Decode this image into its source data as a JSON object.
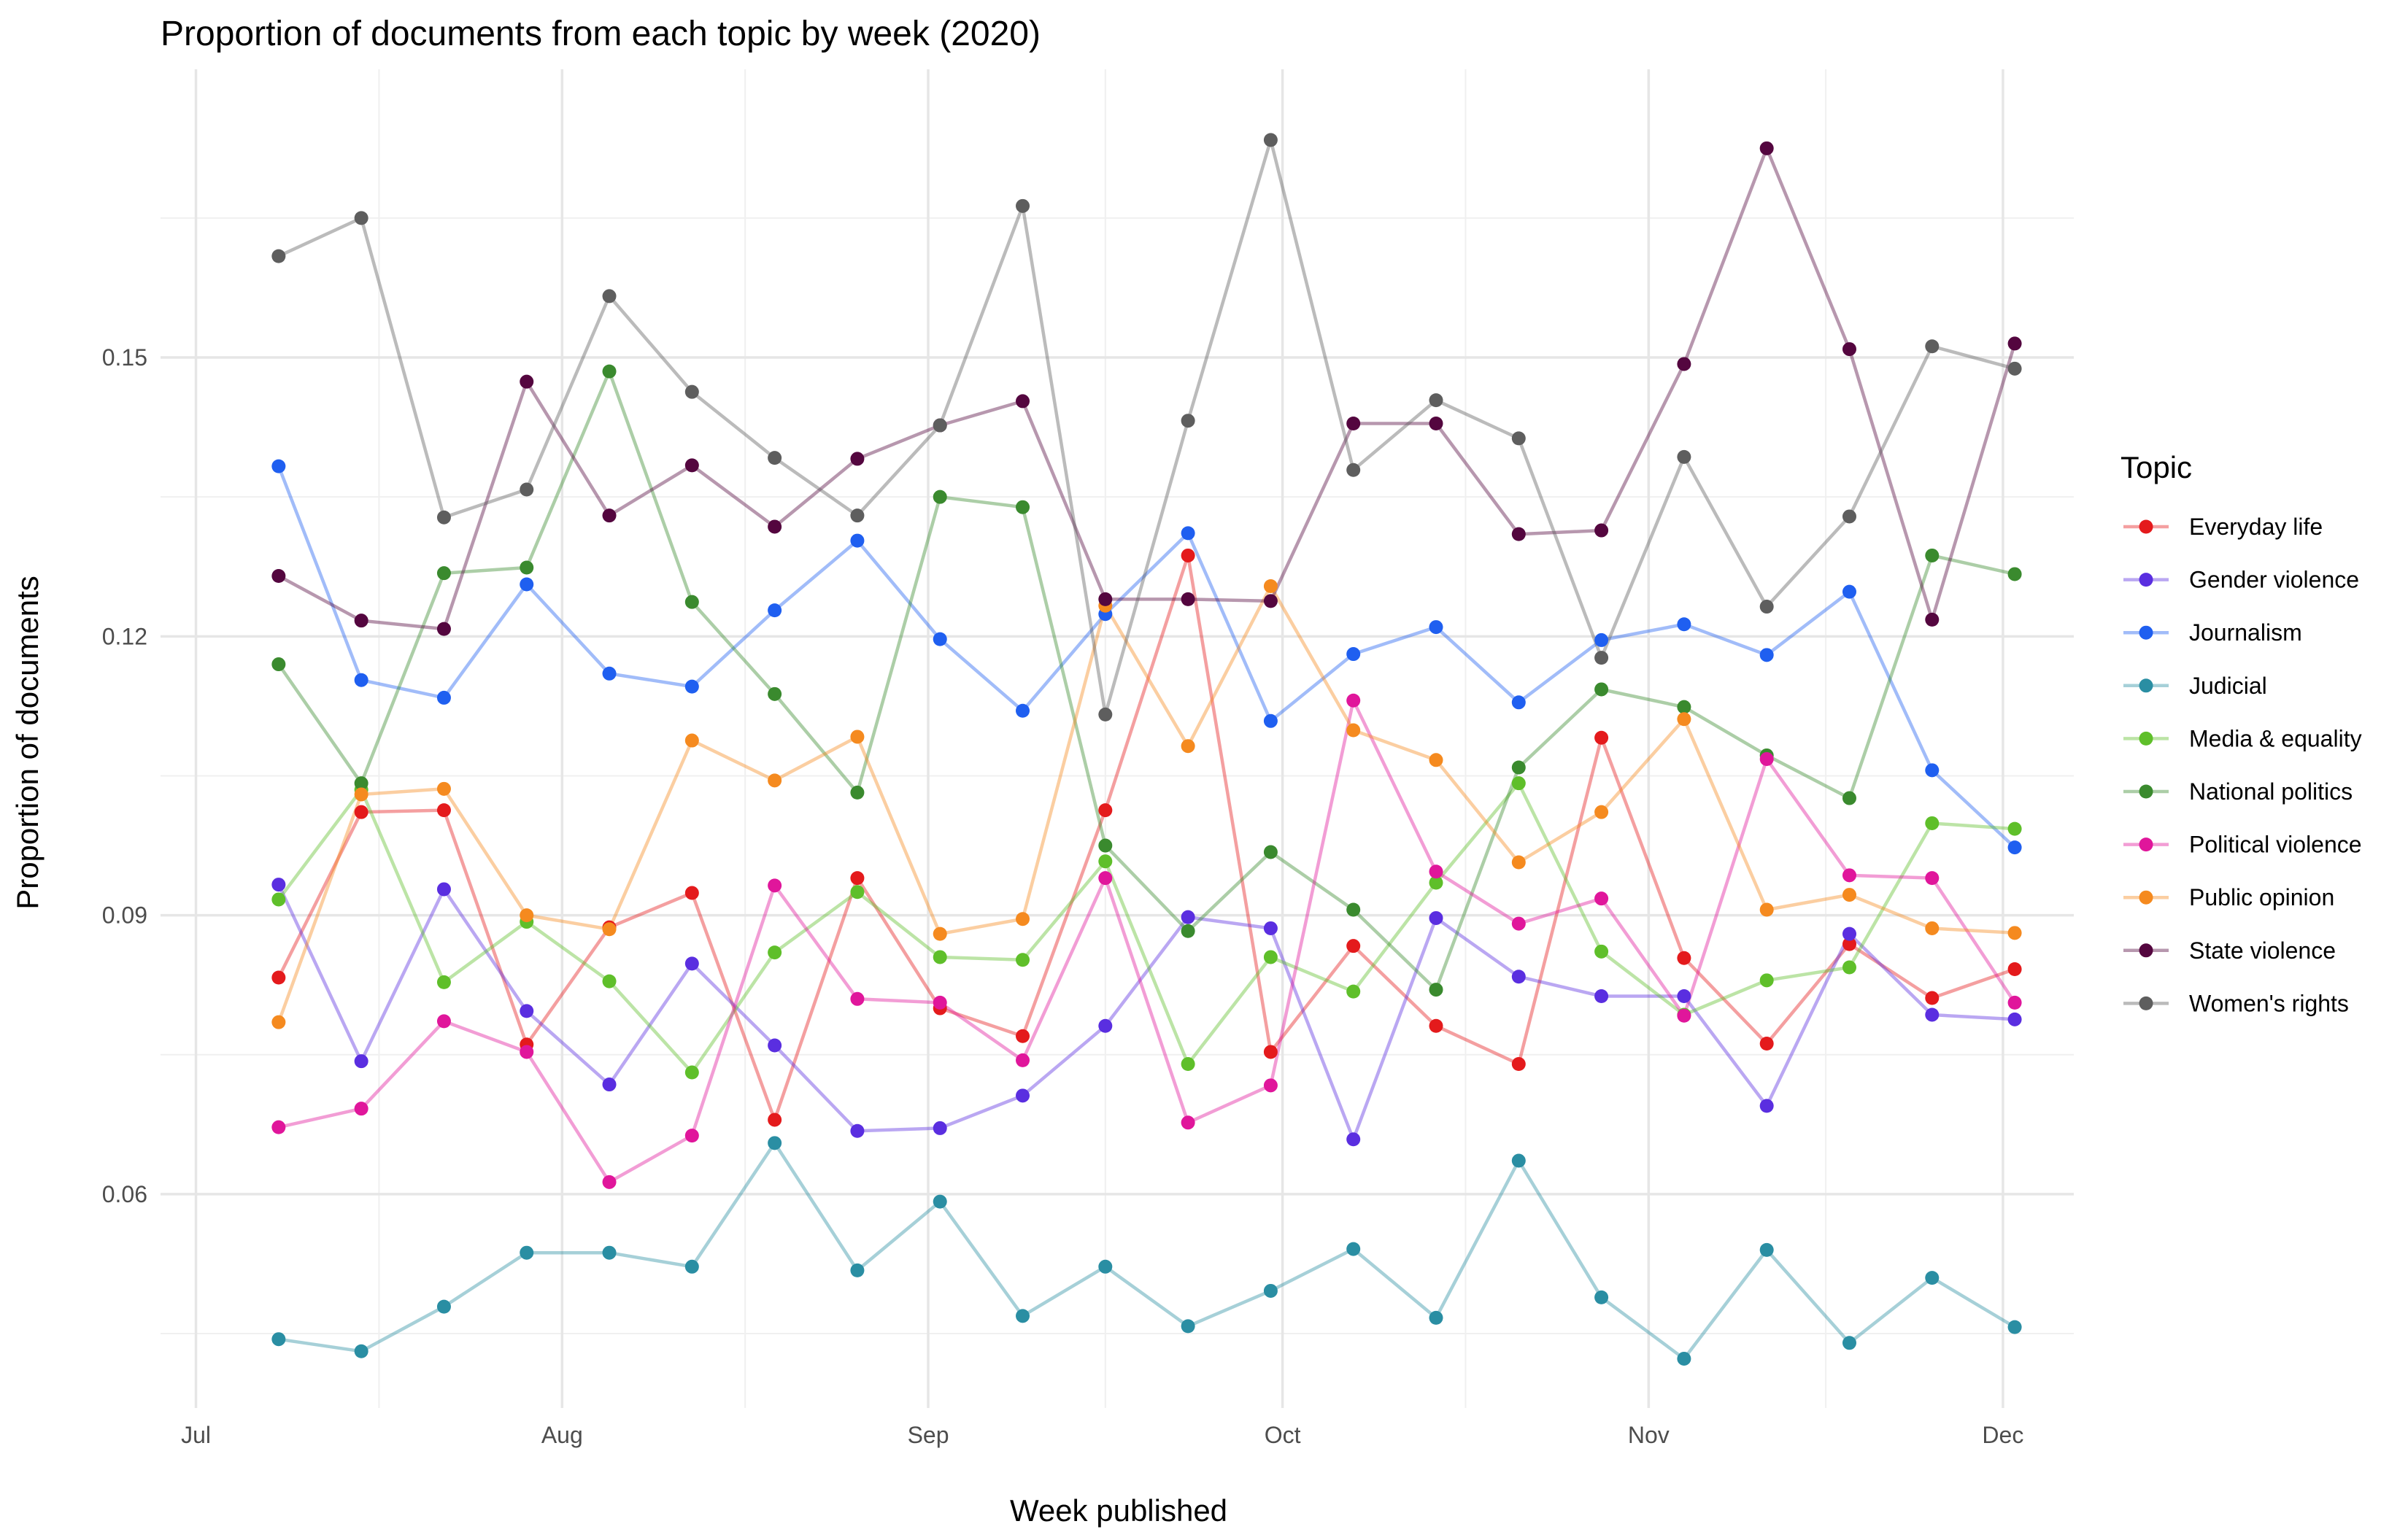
{
  "chart_data": {
    "type": "line",
    "title": "Proportion of documents from each topic by week (2020)",
    "xlabel": "Week published",
    "ylabel": "Proportion of documents",
    "xlim": [
      "2020-06-28",
      "2020-12-07"
    ],
    "ylim": [
      0.037,
      0.181
    ],
    "x_ticks": [
      "2020-07-01",
      "2020-08-01",
      "2020-09-01",
      "2020-10-01",
      "2020-11-01",
      "2020-12-01"
    ],
    "x_tick_labels": [
      "Jul",
      "Aug",
      "Sep",
      "Oct",
      "Nov",
      "Dec"
    ],
    "y_ticks": [
      0.06,
      0.09,
      0.12,
      0.15
    ],
    "y_tick_labels": [
      "0.06",
      "0.09",
      "0.12",
      "0.15"
    ],
    "grid": true,
    "legend": {
      "title": "Topic",
      "position": "right"
    },
    "x": [
      "2020-07-08",
      "2020-07-15",
      "2020-07-22",
      "2020-07-29",
      "2020-08-05",
      "2020-08-12",
      "2020-08-19",
      "2020-08-26",
      "2020-09-02",
      "2020-09-09",
      "2020-09-16",
      "2020-09-23",
      "2020-09-30",
      "2020-10-07",
      "2020-10-14",
      "2020-10-21",
      "2020-10-28",
      "2020-11-04",
      "2020-11-11",
      "2020-11-18",
      "2020-11-25",
      "2020-12-02"
    ],
    "series": [
      {
        "name": "Everyday life",
        "color": "#e41a1c",
        "values": [
          0.0833,
          0.1011,
          0.1013,
          0.0761,
          0.0887,
          0.0924,
          0.068,
          0.094,
          0.08,
          0.077,
          0.1013,
          0.1287,
          0.0753,
          0.0867,
          0.0781,
          0.074,
          0.1091,
          0.0854,
          0.0762,
          0.0869,
          0.0811,
          0.0842
        ]
      },
      {
        "name": "Gender violence",
        "color": "#5a2ee0",
        "values": [
          0.0933,
          0.0743,
          0.0928,
          0.0797,
          0.0718,
          0.0848,
          0.076,
          0.0668,
          0.0671,
          0.0706,
          0.0781,
          0.0898,
          0.0886,
          0.0659,
          0.0897,
          0.0834,
          0.0813,
          0.0813,
          0.0695,
          0.088,
          0.0793,
          0.0788
        ]
      },
      {
        "name": "Journalism",
        "color": "#1f5ff0",
        "values": [
          0.1383,
          0.1153,
          0.1134,
          0.1256,
          0.116,
          0.1146,
          0.1228,
          0.1303,
          0.1197,
          0.112,
          0.1224,
          0.1311,
          0.1109,
          0.1181,
          0.121,
          0.1129,
          0.1196,
          0.1213,
          0.118,
          0.1248,
          0.1056,
          0.0973
        ]
      },
      {
        "name": "Judicial",
        "color": "#2a8ea3",
        "values": [
          0.0444,
          0.0431,
          0.0479,
          0.0537,
          0.0537,
          0.0522,
          0.0655,
          0.0518,
          0.0592,
          0.0469,
          0.0522,
          0.0458,
          0.0496,
          0.0541,
          0.0467,
          0.0636,
          0.0489,
          0.0423,
          0.054,
          0.044,
          0.051,
          0.0457
        ]
      },
      {
        "name": "Media & equality",
        "color": "#5fbf2a",
        "values": [
          0.0917,
          0.1035,
          0.0828,
          0.0893,
          0.0829,
          0.0731,
          0.086,
          0.0925,
          0.0855,
          0.0852,
          0.0958,
          0.074,
          0.0855,
          0.0818,
          0.0935,
          0.1042,
          0.0861,
          0.0793,
          0.083,
          0.0844,
          0.0999,
          0.0993
        ]
      },
      {
        "name": "National politics",
        "color": "#3a8a2e",
        "values": [
          0.117,
          0.1042,
          0.1268,
          0.1274,
          0.1485,
          0.1237,
          0.1138,
          0.1032,
          0.135,
          0.1339,
          0.0975,
          0.0883,
          0.0968,
          0.0906,
          0.082,
          0.1059,
          0.1143,
          0.1124,
          0.1072,
          0.1026,
          0.1287,
          0.1267
        ]
      },
      {
        "name": "Political violence",
        "color": "#e0169b",
        "values": [
          0.0672,
          0.0692,
          0.0786,
          0.0753,
          0.0613,
          0.0663,
          0.0932,
          0.081,
          0.0806,
          0.0744,
          0.094,
          0.0677,
          0.0717,
          0.1131,
          0.0947,
          0.0891,
          0.0918,
          0.0792,
          0.1068,
          0.0943,
          0.094,
          0.0806
        ]
      },
      {
        "name": "Public opinion",
        "color": "#f58a1f",
        "values": [
          0.0785,
          0.103,
          0.1036,
          0.09,
          0.0885,
          0.1088,
          0.1045,
          0.1092,
          0.088,
          0.0896,
          0.1233,
          0.1082,
          0.1254,
          0.1099,
          0.1067,
          0.0957,
          0.1011,
          0.1111,
          0.0906,
          0.0922,
          0.0886,
          0.0881
        ]
      },
      {
        "name": "State violence",
        "color": "#54063f",
        "values": [
          0.1265,
          0.1217,
          0.1208,
          0.1474,
          0.133,
          0.1384,
          0.1318,
          0.1391,
          0.1427,
          0.1453,
          0.124,
          0.124,
          0.1238,
          0.1429,
          0.1429,
          0.131,
          0.1314,
          0.1493,
          0.1725,
          0.1509,
          0.1218,
          0.1515
        ]
      },
      {
        "name": "Women's rights",
        "color": "#5e5e5e",
        "values": [
          0.1609,
          0.165,
          0.1328,
          0.1358,
          0.1566,
          0.1463,
          0.1392,
          0.133,
          0.1427,
          0.1663,
          0.1116,
          0.1432,
          0.1734,
          0.1379,
          0.1454,
          0.1413,
          0.1177,
          0.1393,
          0.1232,
          0.1329,
          0.1512,
          0.1488
        ]
      }
    ]
  }
}
